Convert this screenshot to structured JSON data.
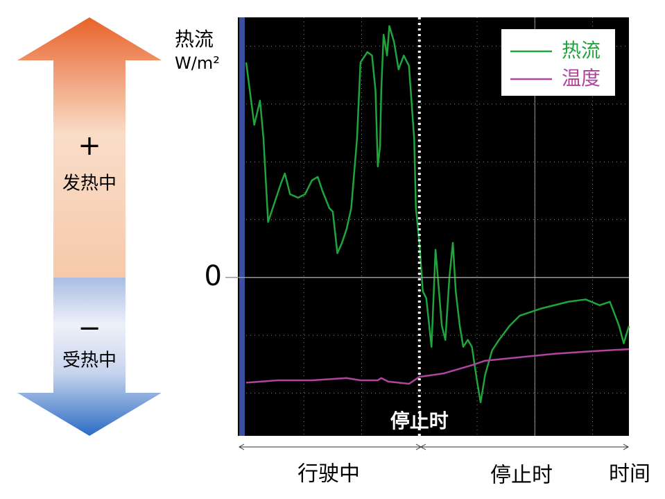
{
  "chart_data": {
    "type": "line",
    "y_label": "热流",
    "y_unit": "W/m²",
    "xlim": [
      0,
      6.63
    ],
    "ylim": [
      -2.74,
      4.5
    ],
    "yticks": [
      0
    ],
    "grid": true,
    "legend": "top-right",
    "stop_x": 3.0,
    "stop_label": "停止时",
    "phases": [
      "行驶中",
      "停止时"
    ],
    "x_label": "时间",
    "side_labels": [
      {
        "sign": "+",
        "text": "发热中"
      },
      {
        "sign": "−",
        "text": "受热中"
      }
    ],
    "series": [
      {
        "name": "热流",
        "color": "#1fa53c",
        "x": [
          0,
          0.14,
          0.24,
          0.3,
          0.38,
          0.46,
          0.6,
          0.67,
          0.76,
          0.9,
          1.02,
          1.14,
          1.24,
          1.32,
          1.44,
          1.5,
          1.58,
          1.66,
          1.74,
          1.82,
          1.92,
          1.98,
          2.1,
          2.18,
          2.24,
          2.28,
          2.32,
          2.34,
          2.38,
          2.44,
          2.48,
          2.56,
          2.64,
          2.73,
          2.82,
          2.91,
          2.94,
          3.0,
          3.06,
          3.12,
          3.21,
          3.28,
          3.34,
          3.39,
          3.45,
          3.52,
          3.58,
          3.63,
          3.7,
          3.76,
          3.84,
          3.91,
          4.0,
          4.06,
          4.14,
          4.26,
          4.38,
          4.56,
          4.74,
          4.92,
          5.1,
          5.34,
          5.58,
          5.88,
          6.12,
          6.3,
          6.46,
          6.54,
          6.63
        ],
        "values": [
          3.72,
          2.64,
          3.06,
          2.4,
          0.96,
          1.2,
          1.62,
          1.8,
          1.44,
          1.38,
          1.44,
          1.68,
          1.74,
          1.5,
          1.2,
          1.14,
          0.42,
          0.6,
          0.84,
          1.2,
          2.4,
          3.72,
          3.9,
          3.84,
          3.24,
          1.92,
          2.28,
          3.24,
          4.2,
          3.84,
          4.35,
          4.08,
          3.6,
          3.84,
          3.66,
          2.4,
          1.2,
          0.6,
          -0.24,
          -0.36,
          -1.2,
          0.48,
          -0.24,
          -0.84,
          -1.08,
          0.0,
          0.6,
          -0.24,
          -0.84,
          -1.2,
          -1.08,
          -1.2,
          -1.8,
          -2.16,
          -1.68,
          -1.26,
          -1.08,
          -0.84,
          -0.66,
          -0.6,
          -0.54,
          -0.48,
          -0.42,
          -0.38,
          -0.48,
          -0.42,
          -0.84,
          -1.14,
          -0.84
        ]
      },
      {
        "name": "温度",
        "color": "#b0449e",
        "x": [
          0,
          0.54,
          1.14,
          1.74,
          1.98,
          2.28,
          2.34,
          2.46,
          2.82,
          3.0,
          3.42,
          3.9,
          4.14,
          4.74,
          5.34,
          5.94,
          6.63
        ],
        "values": [
          -1.82,
          -1.78,
          -1.78,
          -1.74,
          -1.78,
          -1.78,
          -1.74,
          -1.8,
          -1.84,
          -1.72,
          -1.66,
          -1.52,
          -1.44,
          -1.38,
          -1.32,
          -1.28,
          -1.24
        ]
      }
    ]
  }
}
